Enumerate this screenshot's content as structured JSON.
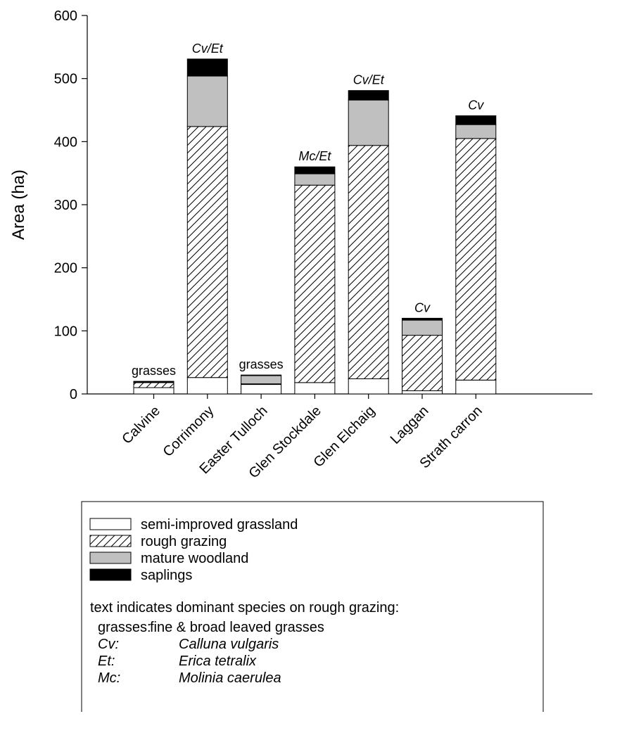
{
  "chart_data": {
    "type": "bar",
    "stacked": true,
    "ylabel": "Area (ha)",
    "ylim": [
      0,
      600
    ],
    "yticks": [
      0,
      100,
      200,
      300,
      400,
      500,
      600
    ],
    "categories": [
      "Calvine",
      "Corrimony",
      "Easter Tulloch",
      "Glen Stockdale",
      "Glen Elchaig",
      "Laggan",
      "Strath carron"
    ],
    "series": [
      {
        "name": "semi-improved grassland",
        "fill": "white",
        "values": [
          10,
          26,
          15,
          18,
          24,
          5,
          22
        ]
      },
      {
        "name": "rough grazing",
        "fill": "hatch",
        "values": [
          8,
          398,
          1,
          313,
          370,
          88,
          383
        ]
      },
      {
        "name": "mature woodland",
        "fill": "#c0c0c0",
        "values": [
          1,
          80,
          13,
          18,
          72,
          24,
          22
        ]
      },
      {
        "name": "saplings",
        "fill": "#000000",
        "values": [
          1,
          27,
          1,
          11,
          15,
          3,
          14
        ]
      }
    ],
    "annotations": [
      {
        "text": "grasses",
        "italic": false
      },
      {
        "text": "Cv/Et",
        "italic": true
      },
      {
        "text": "grasses",
        "italic": false
      },
      {
        "text": "Mc/Et",
        "italic": true
      },
      {
        "text": "Cv/Et",
        "italic": true
      },
      {
        "text": "Cv",
        "italic": true
      },
      {
        "text": "Cv",
        "italic": true
      }
    ],
    "legend": {
      "placement": "below",
      "note_title": "text indicates dominant species on rough grazing:",
      "note_lines": [
        {
          "abbr": "grasses:",
          "text": "fine & broad leaved grasses",
          "italic": false
        },
        {
          "abbr": "Cv:",
          "text": "Calluna vulgaris",
          "italic": true
        },
        {
          "abbr": "Et:",
          "text": "Erica tetralix",
          "italic": true
        },
        {
          "abbr": "Mc:",
          "text": "Molinia caerulea",
          "italic": true
        }
      ]
    }
  }
}
